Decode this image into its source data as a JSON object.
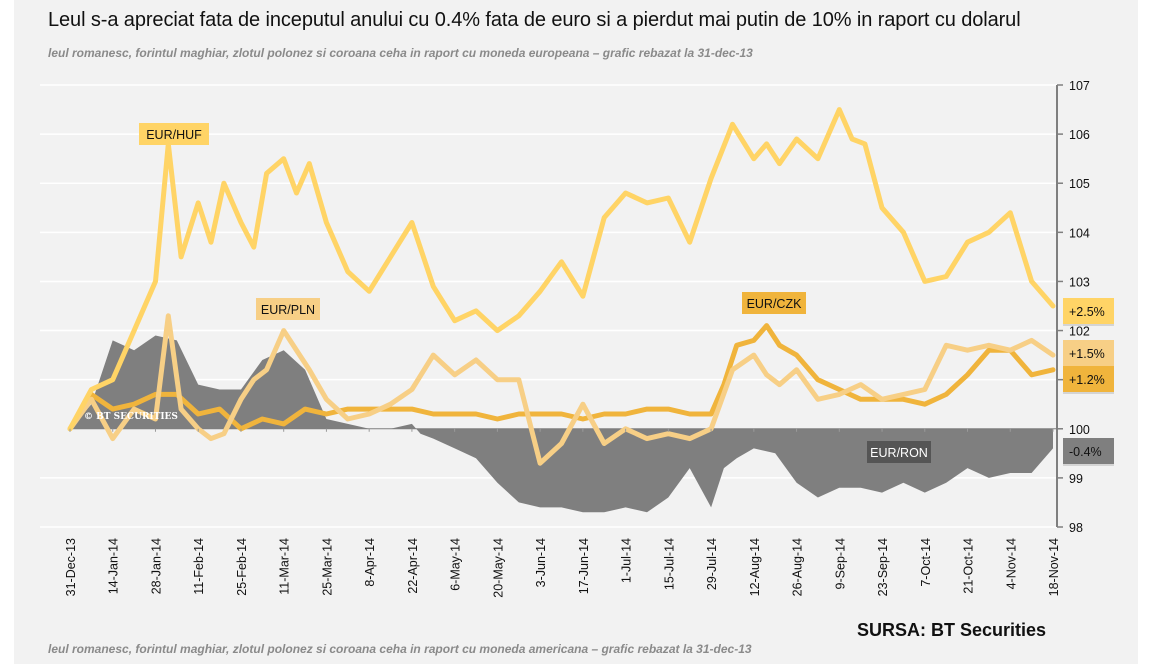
{
  "header": {
    "title": "Leul s-a apreciat fata de inceputul anului cu 0.4% fata de euro si a pierdut mai putin de 10% in raport cu dolarul",
    "subtitle": "leul romanesc, forintul maghiar, zlotul polonez si coroana ceha in raport cu moneda europeana – grafic rebazat la 31-dec-13"
  },
  "footer": {
    "source": "SURSA: BT Securities",
    "next_subtitle": "leul romanesc, forintul maghiar, zlotul polonez si coroana ceha in raport cu moneda americana – grafic rebazat la 31-dec-13"
  },
  "watermark": "© BT SECURITIES",
  "chart_data": {
    "type": "line",
    "title": "Leul s-a apreciat fata de inceputul anului cu 0.4% fata de euro si a pierdut mai putin de 10% in raport cu dolarul",
    "subtitle": "leul romanesc, forintul maghiar, zlotul polonez si coroana ceha in raport cu moneda europeana – grafic rebazat la 31-dec-13",
    "xlabel": "",
    "ylabel": "",
    "y_axis_side": "right",
    "ylim": [
      98,
      107
    ],
    "yticks": [
      98,
      99,
      100,
      101,
      102,
      103,
      104,
      105,
      106,
      107
    ],
    "baseline": 100,
    "grid": true,
    "x_tick_labels": [
      "31-Dec-13",
      "14-Jan-14",
      "28-Jan-14",
      "11-Feb-14",
      "25-Feb-14",
      "11-Mar-14",
      "25-Mar-14",
      "8-Apr-14",
      "22-Apr-14",
      "6-May-14",
      "20-May-14",
      "3-Jun-14",
      "17-Jun-14",
      "1-Jul-14",
      "15-Jul-14",
      "29-Jul-14",
      "12-Aug-14",
      "26-Aug-14",
      "9-Sep-14",
      "23-Sep-14",
      "7-Oct-14",
      "21-Oct-14",
      "4-Nov-14",
      "18-Nov-14"
    ],
    "x_note": "x values are positions in tick units (0 = 31-Dec-13, 23 = 18-Nov-14), sampled roughly every half tick (weekly)",
    "series": [
      {
        "name": "EUR/HUF",
        "type": "line",
        "color": "#ffd466",
        "end_label": "+2.5%",
        "x": [
          0,
          0.5,
          1,
          1.5,
          2,
          2.3,
          2.6,
          3,
          3.3,
          3.6,
          4,
          4.3,
          4.6,
          5,
          5.3,
          5.6,
          6,
          6.5,
          7,
          7.5,
          8,
          8.5,
          9,
          9.5,
          10,
          10.5,
          11,
          11.5,
          12,
          12.5,
          13,
          13.5,
          14,
          14.5,
          15,
          15.5,
          16,
          16.3,
          16.6,
          17,
          17.5,
          18,
          18.3,
          18.6,
          19,
          19.5,
          20,
          20.5,
          21,
          21.5,
          22,
          22.5,
          23
        ],
        "values": [
          100.0,
          100.8,
          101.0,
          102.0,
          103.0,
          105.8,
          103.5,
          104.6,
          103.8,
          105.0,
          104.2,
          103.7,
          105.2,
          105.5,
          104.8,
          105.4,
          104.2,
          103.2,
          102.8,
          103.5,
          104.2,
          102.9,
          102.2,
          102.4,
          102.0,
          102.3,
          102.8,
          103.4,
          102.7,
          104.3,
          104.8,
          104.6,
          104.7,
          103.8,
          105.1,
          106.2,
          105.5,
          105.8,
          105.4,
          105.9,
          105.5,
          106.5,
          105.9,
          105.8,
          104.5,
          104.0,
          103.0,
          103.1,
          103.8,
          104.0,
          104.4,
          103.0,
          102.5
        ]
      },
      {
        "name": "EUR/PLN",
        "type": "line",
        "color": "#f7cf86",
        "end_label": "+1.5%",
        "x": [
          0,
          0.5,
          1,
          1.5,
          2,
          2.3,
          2.6,
          3,
          3.3,
          3.6,
          4,
          4.3,
          4.6,
          5,
          5.3,
          5.6,
          6,
          6.5,
          7,
          7.5,
          8,
          8.5,
          9,
          9.5,
          10,
          10.5,
          11,
          11.5,
          12,
          12.5,
          13,
          13.5,
          14,
          14.5,
          15,
          15.5,
          16,
          16.3,
          16.6,
          17,
          17.5,
          18,
          18.5,
          19,
          19.5,
          20,
          20.5,
          21,
          21.5,
          22,
          22.5,
          23
        ],
        "values": [
          100.0,
          100.6,
          99.8,
          100.4,
          100.2,
          102.3,
          100.4,
          100.0,
          99.8,
          99.9,
          100.6,
          101.0,
          101.2,
          102.0,
          101.6,
          101.2,
          100.6,
          100.2,
          100.3,
          100.5,
          100.8,
          101.5,
          101.1,
          101.4,
          101.0,
          101.0,
          99.3,
          99.7,
          100.5,
          99.7,
          100.0,
          99.8,
          99.9,
          99.8,
          100.0,
          101.2,
          101.5,
          101.1,
          100.9,
          101.2,
          100.6,
          100.7,
          100.9,
          100.6,
          100.7,
          100.8,
          101.7,
          101.6,
          101.7,
          101.6,
          101.8,
          101.5
        ]
      },
      {
        "name": "EUR/CZK",
        "type": "line",
        "color": "#f0b43c",
        "end_label": "+1.2%",
        "x": [
          0,
          0.5,
          1,
          1.5,
          2,
          2.5,
          3,
          3.5,
          4,
          4.5,
          5,
          5.5,
          6,
          6.5,
          7,
          7.5,
          8,
          8.5,
          9,
          9.5,
          10,
          10.5,
          11,
          11.5,
          12,
          12.5,
          13,
          13.5,
          14,
          14.5,
          15,
          15.3,
          15.6,
          16,
          16.3,
          16.6,
          17,
          17.5,
          18,
          18.5,
          19,
          19.5,
          20,
          20.5,
          21,
          21.5,
          22,
          22.5,
          23
        ],
        "values": [
          100.0,
          100.7,
          100.4,
          100.5,
          100.7,
          100.7,
          100.3,
          100.4,
          100.0,
          100.2,
          100.1,
          100.4,
          100.3,
          100.4,
          100.4,
          100.4,
          100.4,
          100.3,
          100.3,
          100.3,
          100.2,
          100.3,
          100.3,
          100.3,
          100.2,
          100.3,
          100.3,
          100.4,
          100.4,
          100.3,
          100.3,
          100.9,
          101.7,
          101.8,
          102.1,
          101.7,
          101.5,
          101.0,
          100.8,
          100.6,
          100.6,
          100.6,
          100.5,
          100.7,
          101.1,
          101.6,
          101.6,
          101.1,
          101.2
        ]
      },
      {
        "name": "EUR/RON",
        "type": "area",
        "color": "#7f7f7f",
        "end_label": "-0.4%",
        "x": [
          0,
          0.5,
          1,
          1.5,
          2,
          2.5,
          3,
          3.5,
          4,
          4.5,
          5,
          5.5,
          6,
          6.5,
          7,
          7.5,
          8,
          8.2,
          8.5,
          9,
          9.5,
          10,
          10.5,
          11,
          11.5,
          12,
          12.5,
          13,
          13.5,
          14,
          14.5,
          15,
          15.3,
          15.6,
          16,
          16.5,
          17,
          17.5,
          18,
          18.5,
          19,
          19.5,
          20,
          20.5,
          21,
          21.5,
          22,
          22.5,
          23
        ],
        "values": [
          100.0,
          100.5,
          101.8,
          101.6,
          101.9,
          101.8,
          100.9,
          100.8,
          100.8,
          101.4,
          101.6,
          101.2,
          100.2,
          100.1,
          100.0,
          100.0,
          100.1,
          99.9,
          99.8,
          99.6,
          99.4,
          98.9,
          98.5,
          98.4,
          98.4,
          98.3,
          98.3,
          98.4,
          98.3,
          98.6,
          99.2,
          98.4,
          99.2,
          99.4,
          99.6,
          99.5,
          98.9,
          98.6,
          98.8,
          98.8,
          98.7,
          98.9,
          98.7,
          98.9,
          99.2,
          99.0,
          99.1,
          99.1,
          99.6
        ]
      }
    ],
    "series_tags": [
      {
        "name": "EUR/HUF",
        "bg": "#ffd466",
        "fg": "#111111"
      },
      {
        "name": "EUR/PLN",
        "bg": "#f7cf86",
        "fg": "#111111"
      },
      {
        "name": "EUR/CZK",
        "bg": "#f0b43c",
        "fg": "#111111"
      },
      {
        "name": "EUR/RON",
        "bg": "#555555",
        "fg": "#ffffff"
      }
    ]
  }
}
